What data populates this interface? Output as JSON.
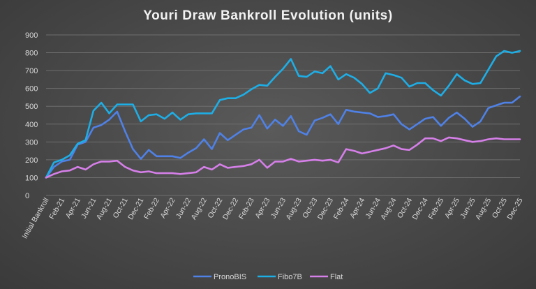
{
  "chart_data": {
    "type": "line",
    "title": "Youri Draw Bankroll Evolution (units)",
    "xlabel": "",
    "ylabel": "",
    "ylim": [
      0,
      900
    ],
    "yticks": [
      0,
      100,
      200,
      300,
      400,
      500,
      600,
      700,
      800,
      900
    ],
    "grid": true,
    "legend_position": "bottom",
    "x": [
      "Initial Bankroll",
      "Jan-21",
      "Feb-21",
      "Mar-21",
      "Apr-21",
      "May-21",
      "Jun-21",
      "Jul-21",
      "Aug-21",
      "Sep-21",
      "Oct-21",
      "Nov-21",
      "Dec-21",
      "Jan-22",
      "Feb-22",
      "Mar-22",
      "Apr-22",
      "May-22",
      "Jun-22",
      "Jul-22",
      "Aug-22",
      "Sep-22",
      "Oct-22",
      "Nov-22",
      "Dec-22",
      "Jan-23",
      "Feb-23",
      "Mar-23",
      "Apr-23",
      "May-23",
      "Jun-23",
      "Jul-23",
      "Aug-23",
      "Sep-23",
      "Oct-23",
      "Nov-23",
      "Dec-23",
      "Jan-24",
      "Feb-24",
      "Mar-24",
      "Apr-24",
      "May-24",
      "Jun-24",
      "Jul-24",
      "Aug-24",
      "Sep-24",
      "Oct-24",
      "Nov-24",
      "Dec-24",
      "Jan-25",
      "Feb-25",
      "Mar-25",
      "Apr-25",
      "May-25",
      "Jun-25",
      "Jul-25",
      "Aug-25",
      "Sep-25",
      "Oct-25",
      "Nov-25",
      "Dec-25"
    ],
    "x_tick_labels": [
      "Initial Bankroll",
      "Feb-21",
      "Apr-21",
      "Jun-21",
      "Aug-21",
      "Oct-21",
      "Dec-21",
      "Feb-22",
      "Apr-22",
      "Jun-22",
      "Aug-22",
      "Oct-22",
      "Dec-22",
      "Feb-23",
      "Apr-23",
      "Jun-23",
      "Aug-23",
      "Oct-23",
      "Dec-23",
      "Feb-24",
      "Apr-24",
      "Jun-24",
      "Aug-24",
      "Oct-24",
      "Dec-24",
      "Feb-25",
      "Apr-25",
      "Jun-25",
      "Aug-25",
      "Oct-25",
      "Dec-25"
    ],
    "series": [
      {
        "name": "PronoBIS",
        "color": "#4f81e6",
        "values": [
          100,
          160,
          190,
          200,
          285,
          300,
          380,
          395,
          425,
          470,
          360,
          260,
          205,
          255,
          220,
          220,
          220,
          210,
          240,
          265,
          315,
          260,
          350,
          310,
          340,
          370,
          380,
          450,
          375,
          425,
          390,
          445,
          360,
          340,
          420,
          435,
          455,
          400,
          480,
          470,
          465,
          460,
          440,
          445,
          455,
          400,
          370,
          400,
          430,
          440,
          390,
          435,
          465,
          430,
          385,
          415,
          490,
          505,
          520,
          520,
          555
        ]
      },
      {
        "name": "Fibo7B",
        "color": "#1eaee6",
        "values": [
          100,
          185,
          200,
          225,
          290,
          310,
          475,
          520,
          460,
          510,
          510,
          510,
          415,
          450,
          455,
          430,
          465,
          425,
          455,
          460,
          460,
          460,
          535,
          545,
          545,
          565,
          595,
          620,
          615,
          665,
          710,
          765,
          670,
          665,
          695,
          685,
          725,
          650,
          680,
          660,
          625,
          575,
          600,
          685,
          675,
          660,
          610,
          630,
          630,
          590,
          560,
          615,
          680,
          645,
          625,
          630,
          705,
          780,
          810,
          800,
          810
        ]
      },
      {
        "name": "Flat",
        "color": "#d57fe8",
        "values": [
          100,
          120,
          135,
          140,
          160,
          145,
          175,
          190,
          190,
          195,
          160,
          140,
          130,
          135,
          125,
          125,
          125,
          120,
          125,
          130,
          160,
          145,
          175,
          155,
          160,
          165,
          175,
          200,
          155,
          190,
          190,
          205,
          190,
          195,
          200,
          195,
          200,
          185,
          260,
          250,
          235,
          245,
          255,
          265,
          280,
          260,
          255,
          285,
          320,
          320,
          305,
          325,
          320,
          310,
          300,
          305,
          315,
          320,
          315,
          315,
          315
        ]
      }
    ]
  }
}
